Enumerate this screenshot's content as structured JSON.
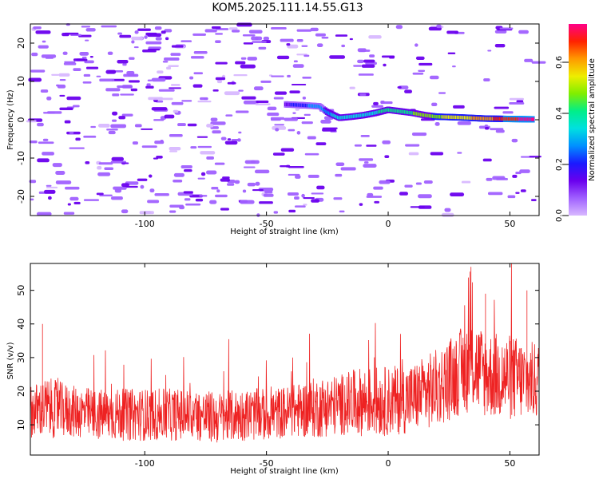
{
  "title": "KOM5.2025.111.14.55.G13",
  "colors": {
    "snr_line": "#ee2222",
    "axis": "#000000",
    "colormap": [
      "#d8b8ff",
      "#a060ff",
      "#6a00ee",
      "#1a1aff",
      "#0090ff",
      "#00e0e0",
      "#00ee88",
      "#80ee00",
      "#eeee00",
      "#ff9900",
      "#ff2200",
      "#ff0088"
    ]
  },
  "chart_data": [
    {
      "type": "heatmap",
      "subtype": "spectrogram",
      "xlabel": "Height of straight line (km)",
      "ylabel": "Frequency (Hz)",
      "xlim": [
        -147,
        62
      ],
      "ylim": [
        -25,
        25
      ],
      "x_ticks": [
        -100,
        -50,
        0,
        50
      ],
      "x_tick_labels": [
        "-100",
        "-50",
        "0",
        "50"
      ],
      "y_ticks": [
        -20,
        -10,
        0,
        10,
        20
      ],
      "y_tick_labels": [
        "-20",
        "-10",
        "0",
        "10",
        "20"
      ],
      "grid": false,
      "colorbar": {
        "label": "Normalized spectral amplitude",
        "range": [
          0.0,
          0.75
        ],
        "ticks": [
          0.0,
          0.2,
          0.4,
          0.6
        ],
        "tick_labels": [
          "0.0",
          "0.2",
          "0.4",
          "0.6"
        ]
      },
      "signal_track": {
        "x": [
          -42,
          -35,
          -28,
          -25,
          -20,
          -15,
          -10,
          -5,
          0,
          5,
          10,
          15,
          20,
          30,
          40,
          50,
          60
        ],
        "y": [
          4.0,
          3.8,
          3.5,
          2.0,
          0.5,
          0.8,
          1.2,
          1.8,
          2.6,
          2.2,
          1.8,
          1.2,
          0.8,
          0.6,
          0.3,
          0.2,
          0.1
        ],
        "amplitude": [
          0.15,
          0.22,
          0.28,
          0.3,
          0.32,
          0.33,
          0.35,
          0.37,
          0.4,
          0.42,
          0.44,
          0.46,
          0.5,
          0.55,
          0.62,
          0.7,
          0.74
        ]
      },
      "background_noise_amplitude": 0.05
    },
    {
      "type": "line",
      "xlabel": "Height of straight line (km)",
      "ylabel": "SNR (v/v)",
      "xlim": [
        -147,
        62
      ],
      "ylim": [
        1,
        58
      ],
      "x_ticks": [
        -100,
        -50,
        0,
        50
      ],
      "x_tick_labels": [
        "-100",
        "-50",
        "0",
        "50"
      ],
      "y_ticks": [
        10,
        20,
        30,
        40,
        50
      ],
      "y_tick_labels": [
        "10",
        "20",
        "30",
        "40",
        "50"
      ],
      "grid": false,
      "series": [
        {
          "x": [
            -147,
            -140,
            -130,
            -120,
            -110,
            -100,
            -90,
            -80,
            -70,
            -60,
            -50,
            -40,
            -30,
            -20,
            -10,
            0,
            10,
            20,
            30,
            35,
            40,
            50,
            60
          ],
          "y_mean": [
            14,
            15,
            14,
            13,
            13,
            13,
            13,
            13,
            12,
            13,
            13,
            14,
            15,
            16,
            17,
            17,
            18,
            21,
            26,
            28,
            25,
            24,
            23
          ],
          "y_spread": [
            6,
            7,
            6,
            6,
            6,
            6,
            6,
            6,
            6,
            6,
            6,
            6,
            7,
            7,
            8,
            8,
            8,
            9,
            10,
            11,
            10,
            10,
            9
          ],
          "peaks": [
            {
              "x": 34,
              "y": 57
            },
            {
              "x": -142,
              "y": 40
            },
            {
              "x": 57,
              "y": 50
            },
            {
              "x": 40,
              "y": 49
            }
          ]
        }
      ]
    }
  ]
}
